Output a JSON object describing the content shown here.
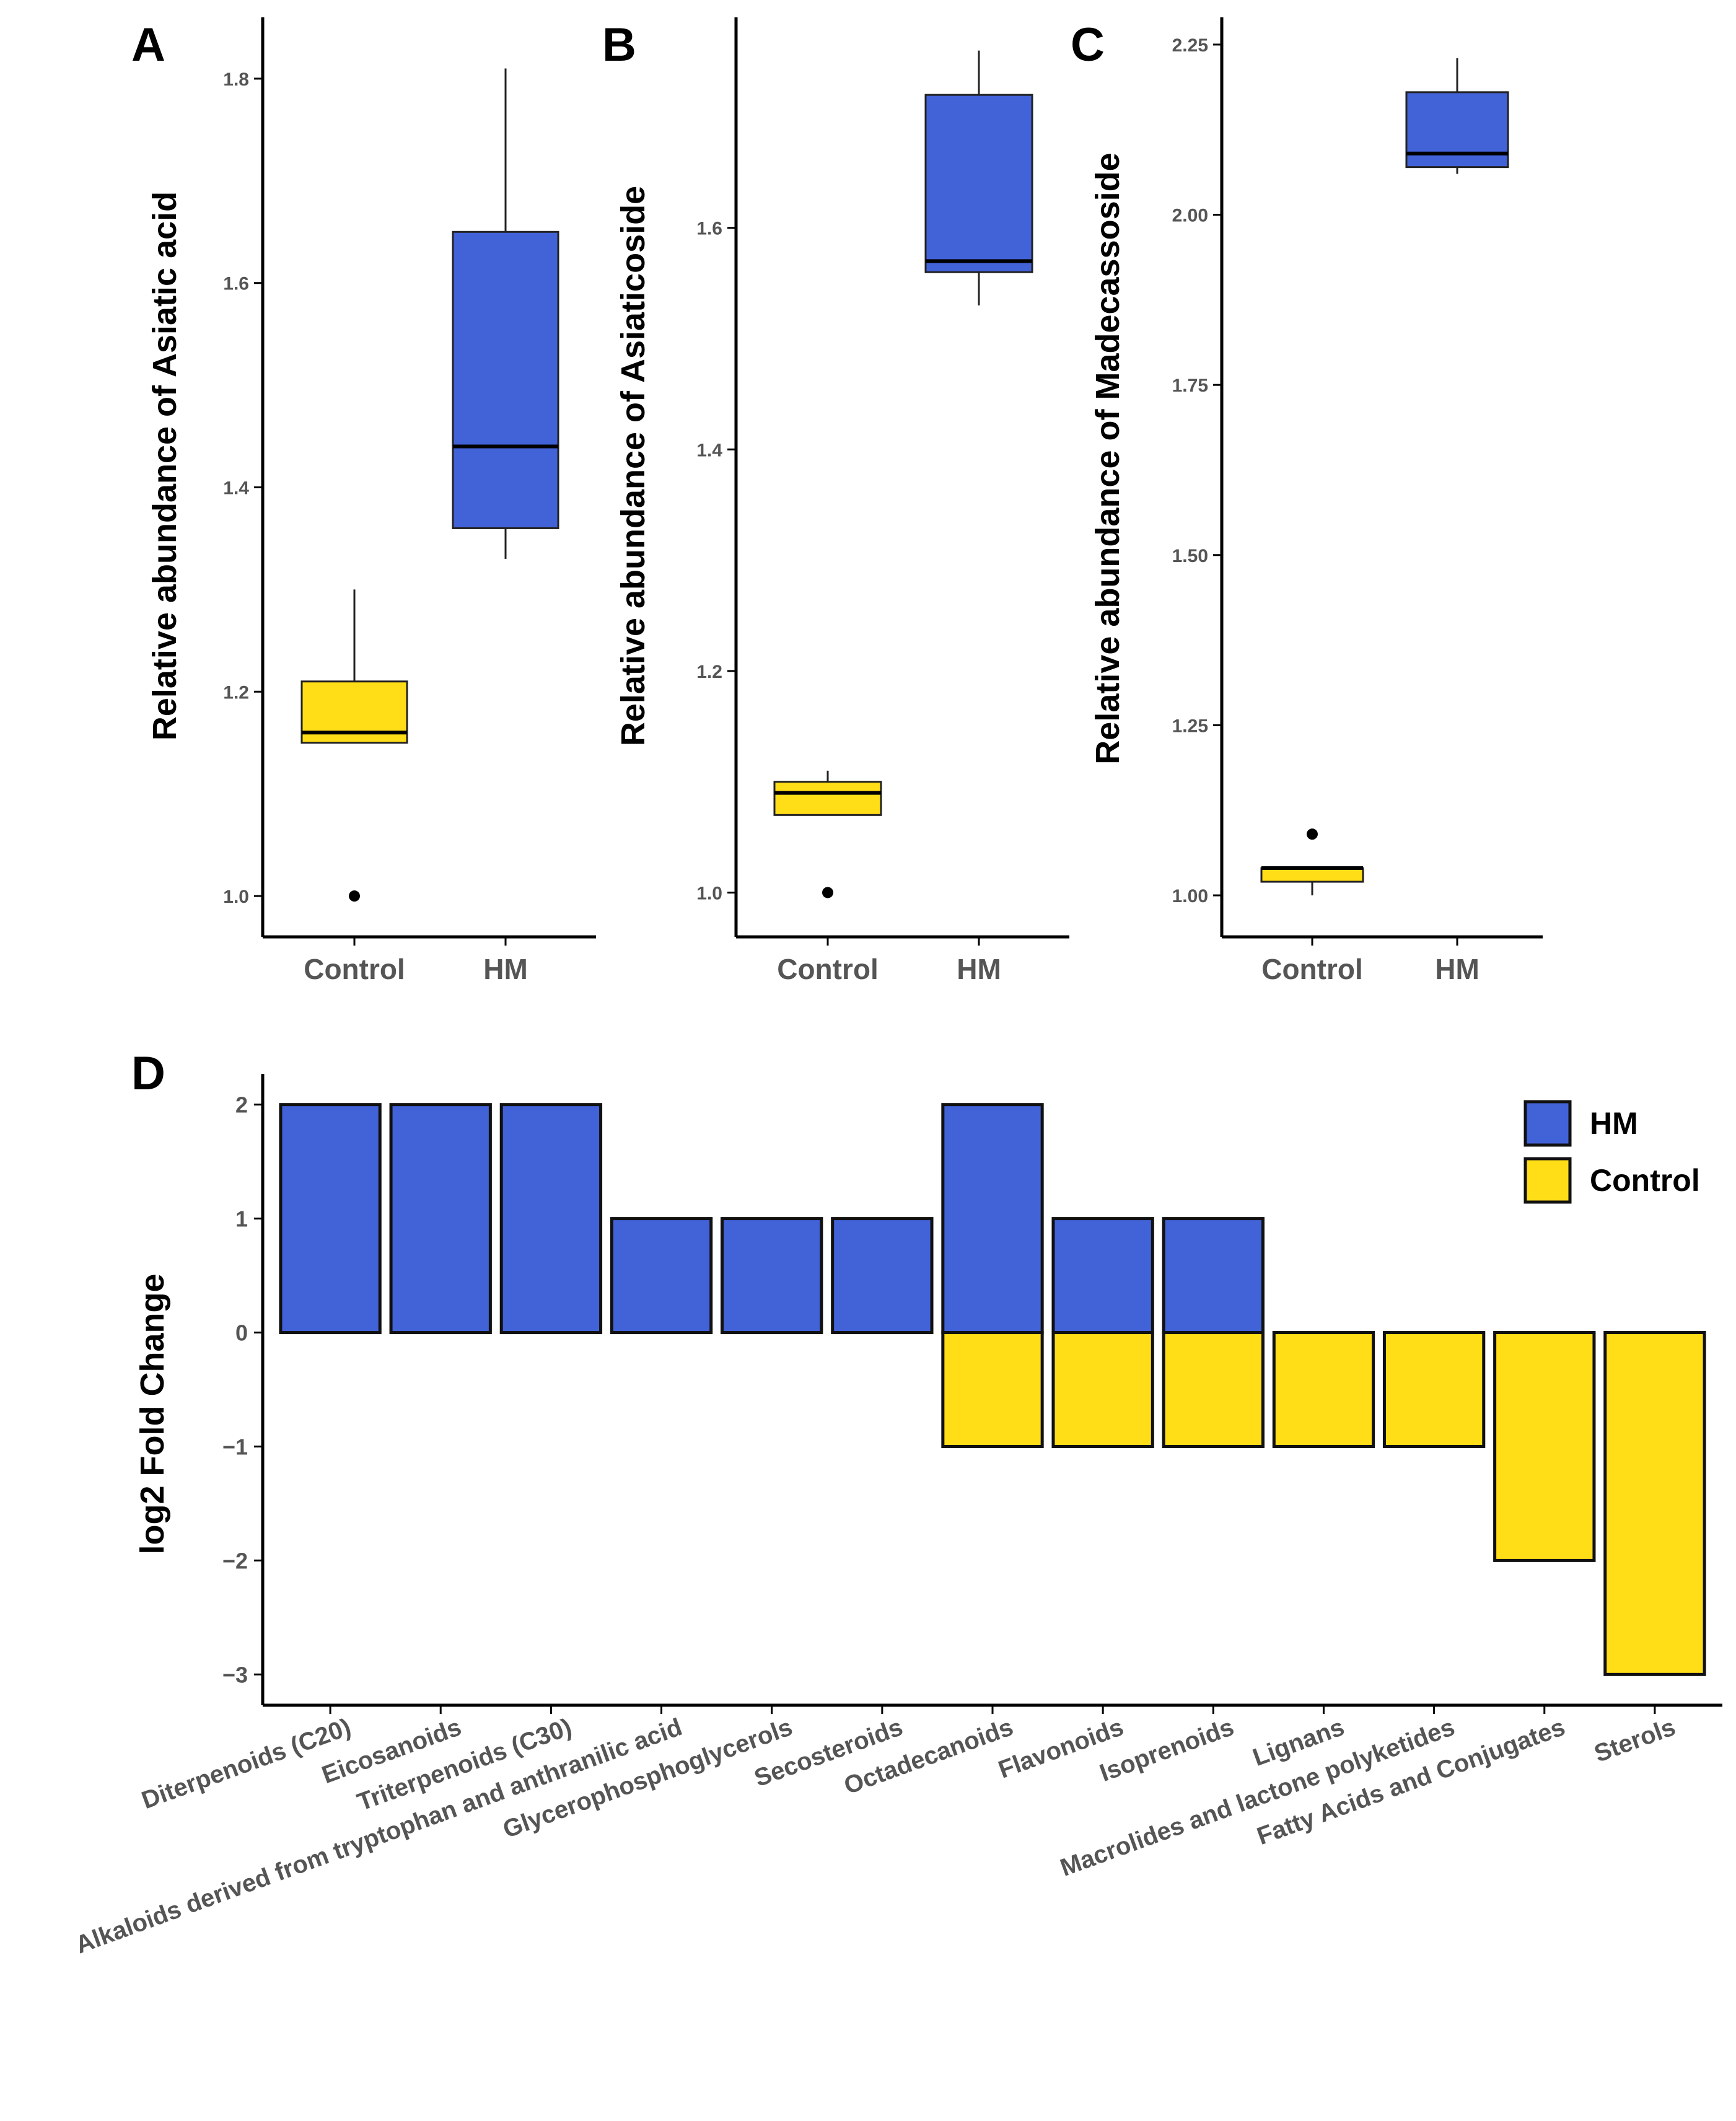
{
  "colors": {
    "hm": "#4262D8",
    "control": "#FFDD17",
    "axis": "#000000",
    "tick_text": "#555555"
  },
  "chart_data": [
    {
      "type": "box",
      "panel": "A",
      "ylabel": "Relative abundance of Asiatic acid",
      "ylim": [
        0.96,
        1.86
      ],
      "yticks": [
        1.0,
        1.2,
        1.4,
        1.6,
        1.8
      ],
      "ytick_labels": [
        "1.0",
        "1.2",
        "1.4",
        "1.6",
        "1.8"
      ],
      "categories": [
        "Control",
        "HM"
      ],
      "boxes": [
        {
          "group": "Control",
          "lower_whisker": 1.15,
          "q1": 1.15,
          "median": 1.16,
          "q3": 1.21,
          "upper_whisker": 1.3,
          "outliers": [
            1.0
          ]
        },
        {
          "group": "HM",
          "lower_whisker": 1.33,
          "q1": 1.36,
          "median": 1.44,
          "q3": 1.65,
          "upper_whisker": 1.81,
          "outliers": []
        }
      ]
    },
    {
      "type": "box",
      "panel": "B",
      "ylabel": "Relative abundance of Asiaticoside",
      "ylim": [
        0.96,
        1.79
      ],
      "yticks": [
        1.0,
        1.2,
        1.4,
        1.6
      ],
      "ytick_labels": [
        "1.0",
        "1.2",
        "1.4",
        "1.6"
      ],
      "categories": [
        "Control",
        "HM"
      ],
      "boxes": [
        {
          "group": "Control",
          "lower_whisker": 1.07,
          "q1": 1.07,
          "median": 1.09,
          "q3": 1.1,
          "upper_whisker": 1.11,
          "outliers": [
            1.0
          ]
        },
        {
          "group": "HM",
          "lower_whisker": 1.53,
          "q1": 1.56,
          "median": 1.57,
          "q3": 1.72,
          "upper_whisker": 1.76,
          "outliers": []
        }
      ]
    },
    {
      "type": "box",
      "panel": "C",
      "ylabel": "Relative abundance of Madecassoside",
      "ylim": [
        0.939,
        2.29
      ],
      "yticks": [
        1.0,
        1.25,
        1.5,
        1.75,
        2.0,
        2.25
      ],
      "ytick_labels": [
        "1.00",
        "1.25",
        "1.50",
        "1.75",
        "2.00",
        "2.25"
      ],
      "categories": [
        "Control",
        "HM"
      ],
      "boxes": [
        {
          "group": "Control",
          "lower_whisker": 1.0,
          "q1": 1.02,
          "median": 1.04,
          "q3": 1.04,
          "upper_whisker": 1.04,
          "outliers": [
            1.09
          ]
        },
        {
          "group": "HM",
          "lower_whisker": 2.06,
          "q1": 2.07,
          "median": 2.09,
          "q3": 2.18,
          "upper_whisker": 2.23,
          "outliers": []
        }
      ]
    },
    {
      "type": "bar",
      "panel": "D",
      "ylabel": "log2 Fold Change",
      "ylim": [
        -3.27,
        2.27
      ],
      "yticks": [
        -3,
        -2,
        -1,
        0,
        1,
        2
      ],
      "ytick_labels": [
        "−3",
        "−2",
        "−1",
        "0",
        "1",
        "2"
      ],
      "legend": {
        "position": "top-right",
        "entries": [
          "HM",
          "Control"
        ]
      },
      "categories": [
        "Diterpenoids (C20)",
        "Eicosanoids",
        "Triterpenoids (C30)",
        "Alkaloids derived from tryptophan and anthranilic acid",
        "Glycerophosphoglycerols",
        "Secosteroids",
        "Octadecanoids",
        "Flavonoids",
        "Isoprenoids",
        "Lignans",
        "Macrolides and lactone polyketides",
        "Fatty Acids and Conjugates",
        "Sterols"
      ],
      "series": [
        {
          "name": "HM",
          "values": [
            2,
            2,
            2,
            1,
            1,
            1,
            2,
            1,
            1,
            0,
            0,
            0,
            0
          ]
        },
        {
          "name": "Control",
          "values": [
            0,
            0,
            0,
            0,
            0,
            0,
            -1,
            -1,
            -1,
            -1,
            -1,
            -2,
            -3
          ]
        }
      ]
    }
  ]
}
